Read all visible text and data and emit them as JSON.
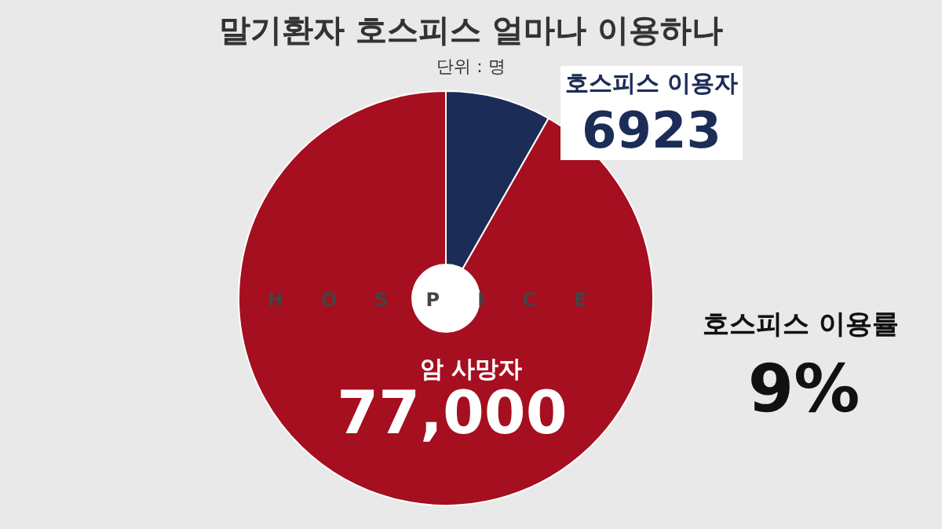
{
  "chart_data": {
    "type": "pie",
    "title": "말기환자 호스피스 얼마나 이용하나",
    "subtitle": "단위 : 명",
    "categories": [
      "호스피스 이용자",
      "암 사망자"
    ],
    "values": [
      6923,
      77000
    ],
    "value_labels": [
      "6923",
      "77,000"
    ],
    "colors": [
      "#1b2d57",
      "#a50f1f"
    ],
    "annotations": [
      "HOSPICE",
      "호스피스 이용률",
      "9%"
    ]
  }
}
